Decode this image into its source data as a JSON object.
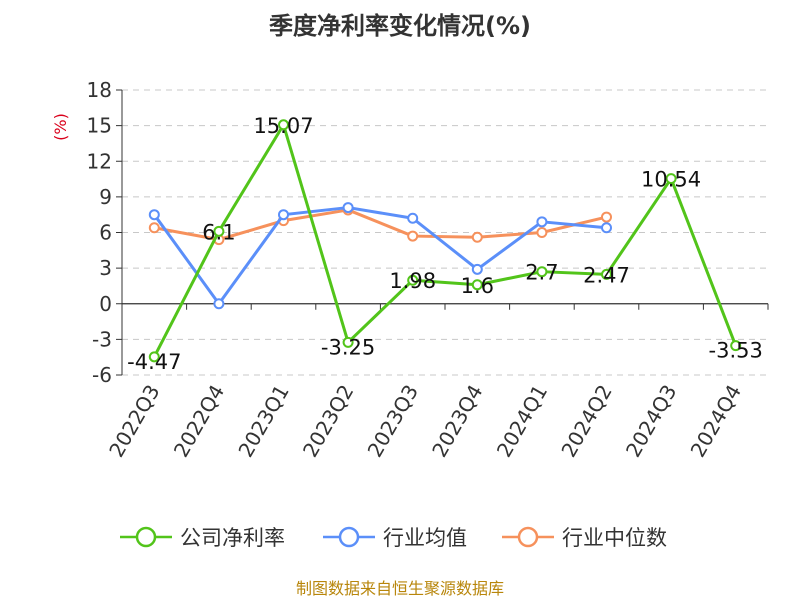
{
  "chart_data": {
    "type": "line",
    "title": "季度净利率变化情况(%)",
    "ylabel": "(%)",
    "categories": [
      "2022Q3",
      "2022Q4",
      "2023Q1",
      "2023Q2",
      "2023Q3",
      "2023Q4",
      "2024Q1",
      "2024Q2",
      "2024Q3",
      "2024Q4"
    ],
    "ylim": [
      -6,
      18
    ],
    "yticks": [
      -6,
      -3,
      0,
      3,
      6,
      9,
      12,
      15,
      18
    ],
    "ytick_labels": [
      "-6",
      "-3",
      "0",
      "3",
      "6",
      "9",
      "12",
      "15",
      "18"
    ],
    "grid": true,
    "legend_position": "bottom",
    "series": [
      {
        "name": "公司净利率",
        "color": "#52c41a",
        "values": [
          -4.47,
          6.1,
          15.07,
          -3.25,
          1.98,
          1.6,
          2.7,
          2.47,
          10.54,
          -3.53
        ],
        "labels": [
          "-4.47",
          "6.1",
          "15.07",
          "-3.25",
          "1.98",
          "1.6",
          "2.7",
          "2.47",
          "10.54",
          "-3.53"
        ]
      },
      {
        "name": "行业均值",
        "color": "#5b8ff9",
        "values": [
          7.5,
          0.0,
          7.5,
          8.1,
          7.2,
          2.9,
          6.9,
          6.4,
          null,
          null
        ]
      },
      {
        "name": "行业中位数",
        "color": "#f6915c",
        "values": [
          6.4,
          5.4,
          7.0,
          7.9,
          5.7,
          5.6,
          6.0,
          7.3,
          null,
          null
        ]
      }
    ],
    "source": "制图数据来自恒生聚源数据库"
  }
}
